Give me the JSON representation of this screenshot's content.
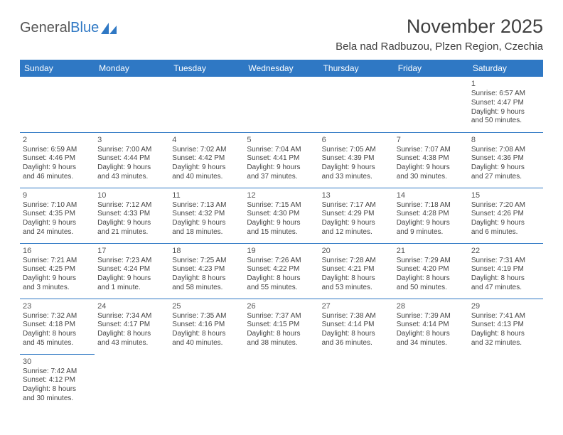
{
  "brand": {
    "part1": "General",
    "part2": "Blue"
  },
  "title": "November 2025",
  "location": "Bela nad Radbuzou, Plzen Region, Czechia",
  "weekday_headers": [
    "Sunday",
    "Monday",
    "Tuesday",
    "Wednesday",
    "Thursday",
    "Friday",
    "Saturday"
  ],
  "colors": {
    "header_bg": "#2f78c4",
    "header_text": "#ffffff",
    "divider": "#2f78c4",
    "body_text": "#444444"
  },
  "typography": {
    "title_fontsize": 27,
    "location_fontsize": 15,
    "header_fontsize": 12,
    "cell_fontsize": 10,
    "daynum_fontsize": 11
  },
  "weeks": [
    [
      null,
      null,
      null,
      null,
      null,
      null,
      {
        "n": "1",
        "sr": "Sunrise: 6:57 AM",
        "ss": "Sunset: 4:47 PM",
        "d1": "Daylight: 9 hours",
        "d2": "and 50 minutes."
      }
    ],
    [
      {
        "n": "2",
        "sr": "Sunrise: 6:59 AM",
        "ss": "Sunset: 4:46 PM",
        "d1": "Daylight: 9 hours",
        "d2": "and 46 minutes."
      },
      {
        "n": "3",
        "sr": "Sunrise: 7:00 AM",
        "ss": "Sunset: 4:44 PM",
        "d1": "Daylight: 9 hours",
        "d2": "and 43 minutes."
      },
      {
        "n": "4",
        "sr": "Sunrise: 7:02 AM",
        "ss": "Sunset: 4:42 PM",
        "d1": "Daylight: 9 hours",
        "d2": "and 40 minutes."
      },
      {
        "n": "5",
        "sr": "Sunrise: 7:04 AM",
        "ss": "Sunset: 4:41 PM",
        "d1": "Daylight: 9 hours",
        "d2": "and 37 minutes."
      },
      {
        "n": "6",
        "sr": "Sunrise: 7:05 AM",
        "ss": "Sunset: 4:39 PM",
        "d1": "Daylight: 9 hours",
        "d2": "and 33 minutes."
      },
      {
        "n": "7",
        "sr": "Sunrise: 7:07 AM",
        "ss": "Sunset: 4:38 PM",
        "d1": "Daylight: 9 hours",
        "d2": "and 30 minutes."
      },
      {
        "n": "8",
        "sr": "Sunrise: 7:08 AM",
        "ss": "Sunset: 4:36 PM",
        "d1": "Daylight: 9 hours",
        "d2": "and 27 minutes."
      }
    ],
    [
      {
        "n": "9",
        "sr": "Sunrise: 7:10 AM",
        "ss": "Sunset: 4:35 PM",
        "d1": "Daylight: 9 hours",
        "d2": "and 24 minutes."
      },
      {
        "n": "10",
        "sr": "Sunrise: 7:12 AM",
        "ss": "Sunset: 4:33 PM",
        "d1": "Daylight: 9 hours",
        "d2": "and 21 minutes."
      },
      {
        "n": "11",
        "sr": "Sunrise: 7:13 AM",
        "ss": "Sunset: 4:32 PM",
        "d1": "Daylight: 9 hours",
        "d2": "and 18 minutes."
      },
      {
        "n": "12",
        "sr": "Sunrise: 7:15 AM",
        "ss": "Sunset: 4:30 PM",
        "d1": "Daylight: 9 hours",
        "d2": "and 15 minutes."
      },
      {
        "n": "13",
        "sr": "Sunrise: 7:17 AM",
        "ss": "Sunset: 4:29 PM",
        "d1": "Daylight: 9 hours",
        "d2": "and 12 minutes."
      },
      {
        "n": "14",
        "sr": "Sunrise: 7:18 AM",
        "ss": "Sunset: 4:28 PM",
        "d1": "Daylight: 9 hours",
        "d2": "and 9 minutes."
      },
      {
        "n": "15",
        "sr": "Sunrise: 7:20 AM",
        "ss": "Sunset: 4:26 PM",
        "d1": "Daylight: 9 hours",
        "d2": "and 6 minutes."
      }
    ],
    [
      {
        "n": "16",
        "sr": "Sunrise: 7:21 AM",
        "ss": "Sunset: 4:25 PM",
        "d1": "Daylight: 9 hours",
        "d2": "and 3 minutes."
      },
      {
        "n": "17",
        "sr": "Sunrise: 7:23 AM",
        "ss": "Sunset: 4:24 PM",
        "d1": "Daylight: 9 hours",
        "d2": "and 1 minute."
      },
      {
        "n": "18",
        "sr": "Sunrise: 7:25 AM",
        "ss": "Sunset: 4:23 PM",
        "d1": "Daylight: 8 hours",
        "d2": "and 58 minutes."
      },
      {
        "n": "19",
        "sr": "Sunrise: 7:26 AM",
        "ss": "Sunset: 4:22 PM",
        "d1": "Daylight: 8 hours",
        "d2": "and 55 minutes."
      },
      {
        "n": "20",
        "sr": "Sunrise: 7:28 AM",
        "ss": "Sunset: 4:21 PM",
        "d1": "Daylight: 8 hours",
        "d2": "and 53 minutes."
      },
      {
        "n": "21",
        "sr": "Sunrise: 7:29 AM",
        "ss": "Sunset: 4:20 PM",
        "d1": "Daylight: 8 hours",
        "d2": "and 50 minutes."
      },
      {
        "n": "22",
        "sr": "Sunrise: 7:31 AM",
        "ss": "Sunset: 4:19 PM",
        "d1": "Daylight: 8 hours",
        "d2": "and 47 minutes."
      }
    ],
    [
      {
        "n": "23",
        "sr": "Sunrise: 7:32 AM",
        "ss": "Sunset: 4:18 PM",
        "d1": "Daylight: 8 hours",
        "d2": "and 45 minutes."
      },
      {
        "n": "24",
        "sr": "Sunrise: 7:34 AM",
        "ss": "Sunset: 4:17 PM",
        "d1": "Daylight: 8 hours",
        "d2": "and 43 minutes."
      },
      {
        "n": "25",
        "sr": "Sunrise: 7:35 AM",
        "ss": "Sunset: 4:16 PM",
        "d1": "Daylight: 8 hours",
        "d2": "and 40 minutes."
      },
      {
        "n": "26",
        "sr": "Sunrise: 7:37 AM",
        "ss": "Sunset: 4:15 PM",
        "d1": "Daylight: 8 hours",
        "d2": "and 38 minutes."
      },
      {
        "n": "27",
        "sr": "Sunrise: 7:38 AM",
        "ss": "Sunset: 4:14 PM",
        "d1": "Daylight: 8 hours",
        "d2": "and 36 minutes."
      },
      {
        "n": "28",
        "sr": "Sunrise: 7:39 AM",
        "ss": "Sunset: 4:14 PM",
        "d1": "Daylight: 8 hours",
        "d2": "and 34 minutes."
      },
      {
        "n": "29",
        "sr": "Sunrise: 7:41 AM",
        "ss": "Sunset: 4:13 PM",
        "d1": "Daylight: 8 hours",
        "d2": "and 32 minutes."
      }
    ],
    [
      {
        "n": "30",
        "sr": "Sunrise: 7:42 AM",
        "ss": "Sunset: 4:12 PM",
        "d1": "Daylight: 8 hours",
        "d2": "and 30 minutes."
      },
      null,
      null,
      null,
      null,
      null,
      null
    ]
  ]
}
